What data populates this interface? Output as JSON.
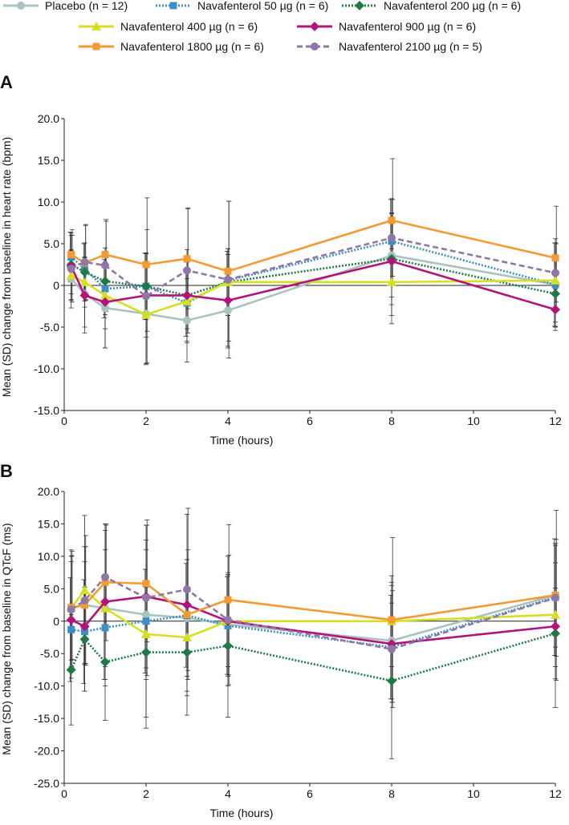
{
  "legend": [
    {
      "label": "Placebo (n = 12)",
      "key": "placebo"
    },
    {
      "label": "Navafenterol 50 µg (n = 6)",
      "key": "n50"
    },
    {
      "label": "Navafenterol 200 µg (n = 6)",
      "key": "n200"
    },
    {
      "label": "Navafenterol 400 µg (n = 6)",
      "key": "n400"
    },
    {
      "label": "Navafenterol 900 µg (n = 6)",
      "key": "n900"
    },
    {
      "label": "Navafenterol 1800 µg (n = 6)",
      "key": "n1800"
    },
    {
      "label": "Navafenterol 2100 µg (n = 5)",
      "key": "n2100"
    }
  ],
  "styles": {
    "placebo": {
      "color": "#a9c3c1",
      "marker": "circle",
      "dash": "solid"
    },
    "n50": {
      "color": "#3b8fc6",
      "marker": "square",
      "dash": "dotted"
    },
    "n200": {
      "color": "#1e7a45",
      "marker": "diamond",
      "dash": "dotted"
    },
    "n400": {
      "color": "#d6e021",
      "marker": "triangle",
      "dash": "solid"
    },
    "n900": {
      "color": "#b2157a",
      "marker": "diamond",
      "dash": "solid"
    },
    "n1800": {
      "color": "#f39a32",
      "marker": "square",
      "dash": "solid"
    },
    "n2100": {
      "color": "#8f78a8",
      "marker": "circle",
      "dash": "dashed"
    }
  },
  "chart_data": [
    {
      "panel": "A",
      "type": "line",
      "xlabel": "Time (hours)",
      "ylabel": "Mean (SD) change from baseline in heart rate (bpm)",
      "xlim": [
        0,
        12
      ],
      "ylim": [
        -15,
        20
      ],
      "xticks": [
        0,
        2,
        4,
        6,
        8,
        10,
        12
      ],
      "xtick_labels": [
        "0",
        "2",
        "4",
        "6",
        "8",
        "10",
        "12"
      ],
      "yticks": [
        -15,
        -10,
        -5,
        0,
        5,
        10,
        15,
        20
      ],
      "ytick_labels": [
        "-15.0",
        "-10.0",
        "-5.0",
        "0",
        "5.0",
        "10.0",
        "15.0",
        "20.0"
      ],
      "series": [
        {
          "key": "placebo",
          "x": [
            0.17,
            0.5,
            1,
            2,
            3,
            4,
            8,
            12
          ],
          "values": [
            0.8,
            -1.0,
            -2.7,
            -3.4,
            -4.2,
            -3.0,
            3.6,
            0.1
          ],
          "sd": [
            3.5,
            4.0,
            4.8,
            6.0,
            5.0,
            4.5,
            5.0,
            5.0
          ]
        },
        {
          "key": "n50",
          "x": [
            0.17,
            0.5,
            1,
            2,
            3,
            4,
            8,
            12
          ],
          "values": [
            3.4,
            2.0,
            -0.4,
            -0.1,
            -2.1,
            0.6,
            5.3,
            0.1
          ],
          "sd": [
            3.0,
            3.0,
            3.5,
            4.0,
            4.0,
            3.5,
            5.0,
            5.0
          ]
        },
        {
          "key": "n200",
          "x": [
            0.17,
            0.5,
            1,
            2,
            3,
            4,
            8,
            12
          ],
          "values": [
            2.5,
            1.6,
            0.5,
            -0.1,
            -1.2,
            0.4,
            3.2,
            -1.0
          ],
          "sd": [
            3.5,
            3.5,
            4.0,
            4.0,
            4.0,
            4.0,
            5.5,
            4.0
          ]
        },
        {
          "key": "n400",
          "x": [
            0.17,
            0.5,
            1,
            2,
            3,
            4,
            8,
            12
          ],
          "values": [
            1.2,
            0.4,
            -1.2,
            -3.5,
            -1.9,
            0.4,
            0.4,
            0.6
          ],
          "sd": [
            3.0,
            3.0,
            4.0,
            6.0,
            5.0,
            4.0,
            4.0,
            5.0
          ]
        },
        {
          "key": "n900",
          "x": [
            0.17,
            0.5,
            1,
            2,
            3,
            4,
            8,
            12
          ],
          "values": [
            2.3,
            -1.2,
            -2.0,
            -1.2,
            -1.2,
            -1.8,
            2.9,
            -2.9
          ],
          "sd": [
            4.0,
            4.5,
            5.5,
            5.0,
            5.5,
            5.5,
            7.5,
            2.5
          ]
        },
        {
          "key": "n1800",
          "x": [
            0.17,
            0.5,
            1,
            2,
            3,
            4,
            8,
            12
          ],
          "values": [
            3.7,
            2.7,
            3.7,
            2.5,
            3.2,
            1.7,
            7.8,
            3.3
          ],
          "sd": [
            3.0,
            4.5,
            4.0,
            8.0,
            6.0,
            8.4,
            7.4,
            6.2
          ]
        },
        {
          "key": "n2100",
          "x": [
            0.17,
            0.5,
            1,
            2,
            3,
            4,
            8,
            12
          ],
          "values": [
            2.0,
            2.8,
            2.4,
            -1.3,
            1.8,
            0.7,
            5.7,
            1.5
          ],
          "sd": [
            4.0,
            4.5,
            5.5,
            8.0,
            7.5,
            9.4,
            4.6,
            3.5
          ]
        }
      ]
    },
    {
      "panel": "B",
      "type": "line",
      "xlabel": "Time (hours)",
      "ylabel": "Mean (SD) change from baseline in QTcF (ms)",
      "xlim": [
        0,
        12
      ],
      "ylim": [
        -25,
        20
      ],
      "xticks": [
        0,
        2,
        4,
        6,
        8,
        10,
        12
      ],
      "xtick_labels": [
        "0",
        "2",
        "4",
        "6",
        "8",
        "10",
        "12"
      ],
      "yticks": [
        -25,
        -20,
        -15,
        -10,
        -5,
        0,
        5,
        10,
        15,
        20
      ],
      "ytick_labels": [
        "-25.0",
        "-20.0",
        "-15.0",
        "-10.0",
        "-5.0",
        "0",
        "5.0",
        "10.0",
        "15.0",
        "20.0"
      ],
      "series": [
        {
          "key": "placebo",
          "x": [
            0.17,
            0.5,
            1,
            2,
            3,
            4,
            8,
            12
          ],
          "values": [
            2.0,
            2.5,
            2.0,
            1.0,
            0.5,
            -0.5,
            -3.0,
            4.0
          ],
          "sd": [
            8.0,
            9.0,
            9.0,
            10.0,
            9.0,
            8.0,
            9.0,
            8.0
          ]
        },
        {
          "key": "n50",
          "x": [
            0.17,
            0.5,
            1,
            2,
            3,
            4,
            8,
            12
          ],
          "values": [
            -1.3,
            -1.6,
            -1.0,
            0.0,
            0.9,
            -0.7,
            -4.0,
            3.7
          ],
          "sd": [
            8.0,
            8.0,
            8.0,
            8.0,
            8.0,
            7.5,
            8.0,
            9.0
          ]
        },
        {
          "key": "n200",
          "x": [
            0.17,
            0.5,
            1,
            2,
            3,
            4,
            8,
            12
          ],
          "values": [
            -7.5,
            -2.8,
            -6.3,
            -4.8,
            -4.8,
            -3.8,
            -9.2,
            -1.9
          ],
          "sd": [
            8.5,
            8.0,
            9.0,
            10.0,
            6.0,
            11.0,
            12.0,
            7.0
          ]
        },
        {
          "key": "n400",
          "x": [
            0.17,
            0.5,
            1,
            2,
            3,
            4,
            8,
            12
          ],
          "values": [
            2.0,
            4.8,
            2.0,
            -2.0,
            -2.5,
            0.0,
            0.0,
            1.0
          ],
          "sd": [
            9.0,
            11.5,
            12.0,
            14.5,
            12.0,
            7.0,
            7.0,
            8.0
          ]
        },
        {
          "key": "n900",
          "x": [
            0.17,
            0.5,
            1,
            2,
            3,
            4,
            8,
            12
          ],
          "values": [
            0.2,
            -0.8,
            3.0,
            3.8,
            2.5,
            0.0,
            -3.5,
            -0.8
          ],
          "sd": [
            9.0,
            10.0,
            12.0,
            11.0,
            14.0,
            10.0,
            9.0,
            12.5
          ]
        },
        {
          "key": "n1800",
          "x": [
            0.17,
            0.5,
            1,
            2,
            3,
            4,
            8,
            12
          ],
          "values": [
            2.1,
            2.5,
            6.0,
            5.8,
            1.0,
            3.3,
            0.2,
            4.0
          ],
          "sd": [
            8.0,
            9.0,
            9.0,
            9.0,
            10.0,
            11.6,
            12.7,
            13.1
          ]
        },
        {
          "key": "n2100",
          "x": [
            0.17,
            0.5,
            1,
            2,
            3,
            4,
            8,
            12
          ],
          "values": [
            1.8,
            3.2,
            6.8,
            3.6,
            4.9,
            0.2,
            -4.3,
            3.6
          ],
          "sd": [
            9.0,
            10.0,
            8.0,
            12.0,
            12.5,
            10.0,
            9.0,
            9.0
          ]
        }
      ]
    }
  ]
}
